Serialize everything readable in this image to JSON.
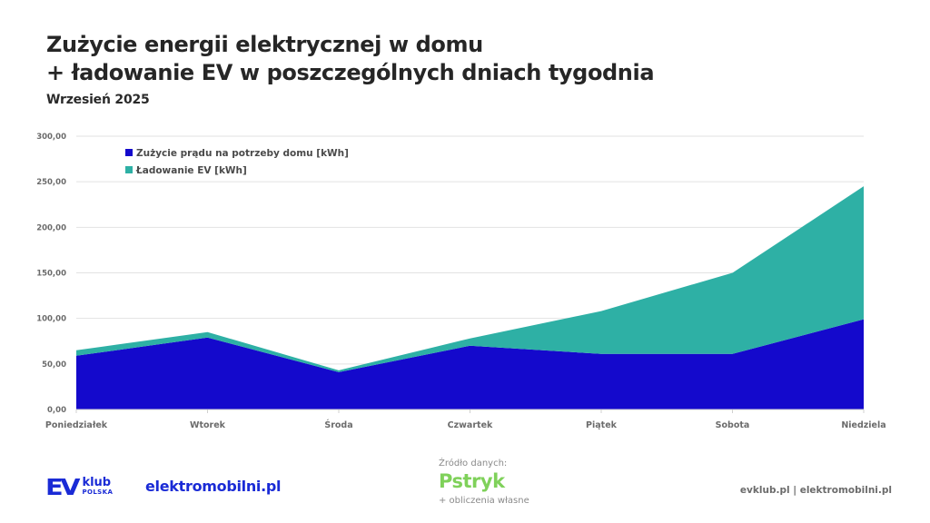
{
  "header": {
    "title_line1": "Zużycie energii elektrycznej w domu",
    "title_line2": "+ ładowanie EV w poszczególnych dniach tygodnia",
    "subtitle": "Wrzesień 2025"
  },
  "colors": {
    "home": "#1409cc",
    "ev": "#2eb0a5",
    "grid": "#e2e2e2",
    "brand_blue": "#1a2bd6",
    "pstryk_green": "#7fd15a"
  },
  "chart_data": {
    "type": "area",
    "stacked": true,
    "title": "Zużycie energii elektrycznej w domu + ładowanie EV w poszczególnych dniach tygodnia",
    "subtitle": "Wrzesień 2025",
    "categories": [
      "Poniedziałek",
      "Wtorek",
      "Środa",
      "Czwartek",
      "Piątek",
      "Sobota",
      "Niedziela"
    ],
    "series": [
      {
        "name": "Zużycie prądu na potrzeby domu [kWh]",
        "color": "#1409cc",
        "values": [
          59,
          79,
          41,
          70,
          61,
          61,
          99
        ]
      },
      {
        "name": "Ładowanie EV [kWh]",
        "color": "#2eb0a5",
        "values": [
          6,
          6,
          2,
          8,
          47,
          89,
          146
        ]
      }
    ],
    "xlabel": "",
    "ylabel": "",
    "ylim": [
      0,
      300
    ],
    "yticks": [
      "0,00",
      "50,00",
      "100,00",
      "150,00",
      "200,00",
      "250,00",
      "300,00"
    ],
    "grid": true,
    "legend_position": "top-left inside"
  },
  "footer": {
    "ev_logo_main": "EV",
    "ev_logo_klub": "klub",
    "ev_logo_polska": "POLSKA",
    "elektromobilni_logo": "elektromobilni.pl",
    "source_label": "Źródło danych:",
    "source_brand": "Pstryk",
    "source_note": "+ obliczenia własne",
    "links": "evklub.pl | elektromobilni.pl"
  }
}
